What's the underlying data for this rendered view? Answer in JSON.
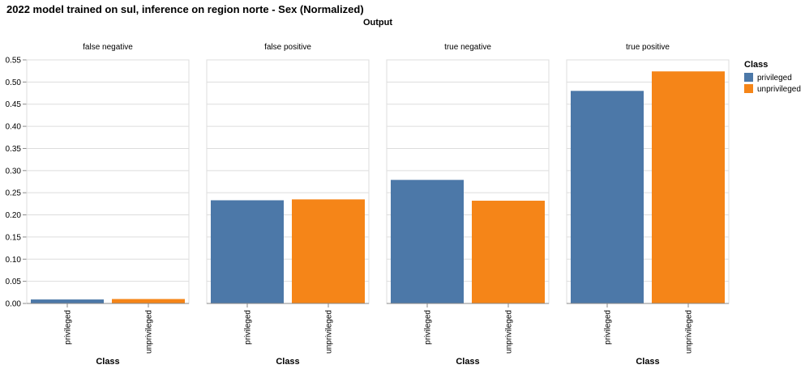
{
  "chart_data": {
    "type": "bar",
    "title": "2022 model trained on sul, inference on region norte - Sex (Normalized)",
    "column_title": "Output",
    "facets": [
      "false negative",
      "false positive",
      "true negative",
      "true positive"
    ],
    "categories": [
      "privileged",
      "unprivileged"
    ],
    "xlabel": "Class",
    "ylabel": "",
    "ylim": [
      0,
      0.55
    ],
    "yticks": [
      "0.00",
      "0.05",
      "0.10",
      "0.15",
      "0.20",
      "0.25",
      "0.30",
      "0.35",
      "0.40",
      "0.45",
      "0.50",
      "0.55"
    ],
    "grid": true,
    "legend": {
      "title": "Class",
      "position": "top-right",
      "entries": [
        "privileged",
        "unprivileged"
      ]
    },
    "colors": {
      "privileged": "#4c78a8",
      "unprivileged": "#f58518"
    },
    "values": {
      "false negative": [
        0.009,
        0.01
      ],
      "false positive": [
        0.233,
        0.235
      ],
      "true negative": [
        0.279,
        0.232
      ],
      "true positive": [
        0.48,
        0.524
      ]
    }
  }
}
